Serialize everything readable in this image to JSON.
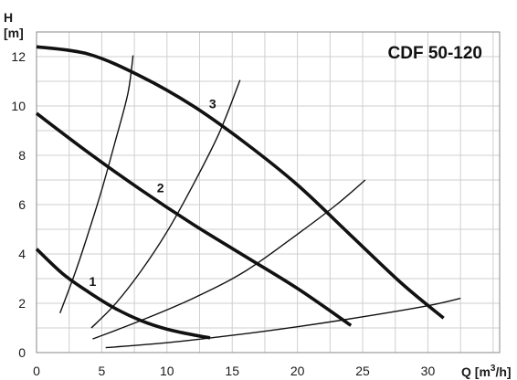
{
  "chart_data": {
    "type": "line",
    "title": "CDF 50-120",
    "ylabel": "H",
    "yunit": "[m]",
    "xlabel": "Q [m",
    "xunit_sup": "3",
    "xunit_end": "/h]",
    "xlim": [
      0,
      35.5
    ],
    "ylim": [
      0,
      13
    ],
    "xticks": [
      0,
      5,
      10,
      15,
      20,
      25,
      30
    ],
    "yticks": [
      0,
      2,
      4,
      6,
      8,
      10,
      12
    ],
    "grid": true,
    "series": [
      {
        "name": "1",
        "kind": "pump",
        "points": [
          [
            0,
            4.2
          ],
          [
            2,
            3.2
          ],
          [
            4,
            2.45
          ],
          [
            6,
            1.8
          ],
          [
            8,
            1.3
          ],
          [
            10,
            0.95
          ],
          [
            12,
            0.72
          ],
          [
            13.3,
            0.6
          ]
        ],
        "label_at": [
          4.3,
          2.7
        ]
      },
      {
        "name": "2",
        "kind": "pump",
        "points": [
          [
            0,
            9.7
          ],
          [
            4,
            8.1
          ],
          [
            8,
            6.6
          ],
          [
            12,
            5.2
          ],
          [
            16,
            3.9
          ],
          [
            20,
            2.6
          ],
          [
            24.1,
            1.1
          ]
        ],
        "label_at": [
          9.5,
          6.5
        ]
      },
      {
        "name": "3",
        "kind": "pump",
        "points": [
          [
            0,
            12.4
          ],
          [
            4,
            12.1
          ],
          [
            8,
            11.2
          ],
          [
            12,
            10.0
          ],
          [
            16,
            8.5
          ],
          [
            20,
            6.8
          ],
          [
            24,
            4.8
          ],
          [
            28,
            2.8
          ],
          [
            31.2,
            1.4
          ]
        ],
        "label_at": [
          13.5,
          9.9
        ]
      },
      {
        "kind": "system",
        "points": [
          [
            1.8,
            1.6
          ],
          [
            3,
            3.3
          ],
          [
            4,
            4.9
          ],
          [
            5,
            6.6
          ],
          [
            6,
            8.5
          ],
          [
            7,
            10.5
          ],
          [
            7.4,
            12.05
          ]
        ]
      },
      {
        "kind": "system",
        "points": [
          [
            4.2,
            1.0
          ],
          [
            6,
            1.95
          ],
          [
            8,
            3.3
          ],
          [
            10,
            4.9
          ],
          [
            12,
            6.8
          ],
          [
            14,
            8.9
          ],
          [
            15.6,
            11.05
          ]
        ]
      },
      {
        "kind": "system",
        "points": [
          [
            4.3,
            0.55
          ],
          [
            8,
            1.3
          ],
          [
            12,
            2.2
          ],
          [
            16,
            3.3
          ],
          [
            20,
            4.8
          ],
          [
            23,
            6.0
          ],
          [
            25.2,
            7.0
          ]
        ]
      },
      {
        "kind": "system",
        "points": [
          [
            5.3,
            0.2
          ],
          [
            10,
            0.4
          ],
          [
            15,
            0.7
          ],
          [
            20,
            1.05
          ],
          [
            25,
            1.45
          ],
          [
            30,
            1.9
          ],
          [
            32.5,
            2.2
          ]
        ]
      }
    ]
  }
}
